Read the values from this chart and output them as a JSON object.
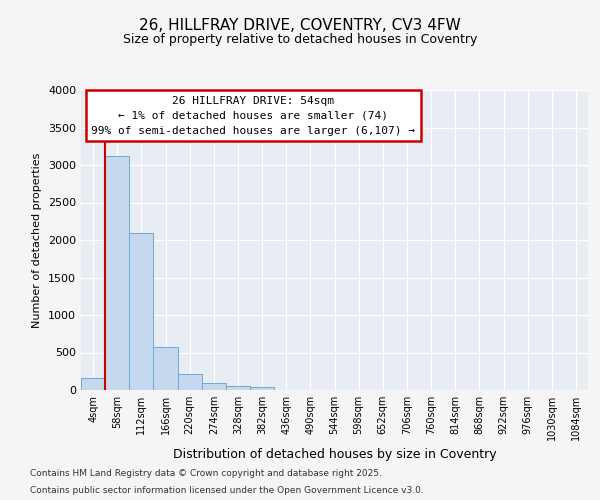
{
  "title1": "26, HILLFRAY DRIVE, COVENTRY, CV3 4FW",
  "title2": "Size of property relative to detached houses in Coventry",
  "xlabel": "Distribution of detached houses by size in Coventry",
  "ylabel": "Number of detached properties",
  "bar_color": "#c5d8ee",
  "bar_edge_color": "#6aaad4",
  "bar_categories": [
    "4sqm",
    "58sqm",
    "112sqm",
    "166sqm",
    "220sqm",
    "274sqm",
    "328sqm",
    "382sqm",
    "436sqm",
    "490sqm",
    "544sqm",
    "598sqm",
    "652sqm",
    "706sqm",
    "760sqm",
    "814sqm",
    "868sqm",
    "922sqm",
    "976sqm",
    "1030sqm",
    "1084sqm"
  ],
  "bar_values": [
    155,
    3120,
    2090,
    580,
    210,
    90,
    55,
    45,
    0,
    0,
    0,
    0,
    0,
    0,
    0,
    0,
    0,
    0,
    0,
    0,
    0
  ],
  "ylim": [
    0,
    4000
  ],
  "yticks": [
    0,
    500,
    1000,
    1500,
    2000,
    2500,
    3000,
    3500,
    4000
  ],
  "annotation_text": "26 HILLFRAY DRIVE: 54sqm\n← 1% of detached houses are smaller (74)\n99% of semi-detached houses are larger (6,107) →",
  "annotation_box_color": "#ffffff",
  "annotation_border_color": "#cc0000",
  "footer1": "Contains HM Land Registry data © Crown copyright and database right 2025.",
  "footer2": "Contains public sector information licensed under the Open Government Licence v3.0.",
  "background_color": "#f5f5f5",
  "plot_bg_color": "#e8edf4",
  "grid_color": "#ffffff",
  "red_line_color": "#cc0000",
  "title_fontsize": 11,
  "subtitle_fontsize": 9
}
